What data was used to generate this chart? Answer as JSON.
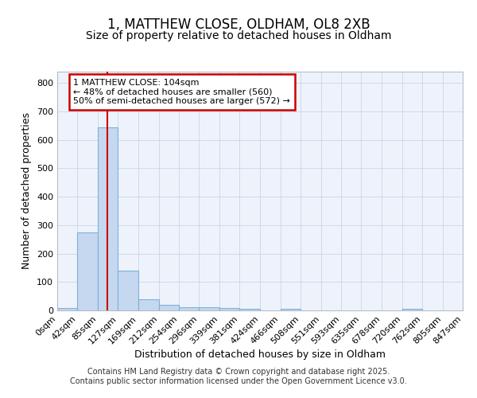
{
  "title1": "1, MATTHEW CLOSE, OLDHAM, OL8 2XB",
  "title2": "Size of property relative to detached houses in Oldham",
  "xlabel": "Distribution of detached houses by size in Oldham",
  "ylabel": "Number of detached properties",
  "bin_edges": [
    0,
    42,
    85,
    127,
    169,
    212,
    254,
    296,
    339,
    381,
    424,
    466,
    508,
    551,
    593,
    635,
    678,
    720,
    762,
    805,
    847
  ],
  "bin_labels": [
    "0sqm",
    "42sqm",
    "85sqm",
    "127sqm",
    "169sqm",
    "212sqm",
    "254sqm",
    "296sqm",
    "339sqm",
    "381sqm",
    "424sqm",
    "466sqm",
    "508sqm",
    "551sqm",
    "593sqm",
    "635sqm",
    "678sqm",
    "720sqm",
    "762sqm",
    "805sqm",
    "847sqm"
  ],
  "bar_heights": [
    8,
    275,
    645,
    140,
    38,
    20,
    12,
    10,
    8,
    7,
    0,
    5,
    0,
    0,
    0,
    0,
    0,
    5,
    0,
    0
  ],
  "bar_color": "#c5d8f0",
  "bar_edge_color": "#7db0d9",
  "red_line_x": 104,
  "ylim": [
    0,
    840
  ],
  "yticks": [
    0,
    100,
    200,
    300,
    400,
    500,
    600,
    700,
    800
  ],
  "annotation_text": "1 MATTHEW CLOSE: 104sqm\n← 48% of detached houses are smaller (560)\n50% of semi-detached houses are larger (572) →",
  "annotation_box_color": "#ffffff",
  "annotation_box_edge_color": "#cc0000",
  "grid_color": "#c8d4e8",
  "background_color": "#eef3fb",
  "footer1": "Contains HM Land Registry data © Crown copyright and database right 2025.",
  "footer2": "Contains public sector information licensed under the Open Government Licence v3.0.",
  "title1_fontsize": 12,
  "title2_fontsize": 10,
  "axis_label_fontsize": 9,
  "tick_fontsize": 8,
  "annotation_fontsize": 8
}
